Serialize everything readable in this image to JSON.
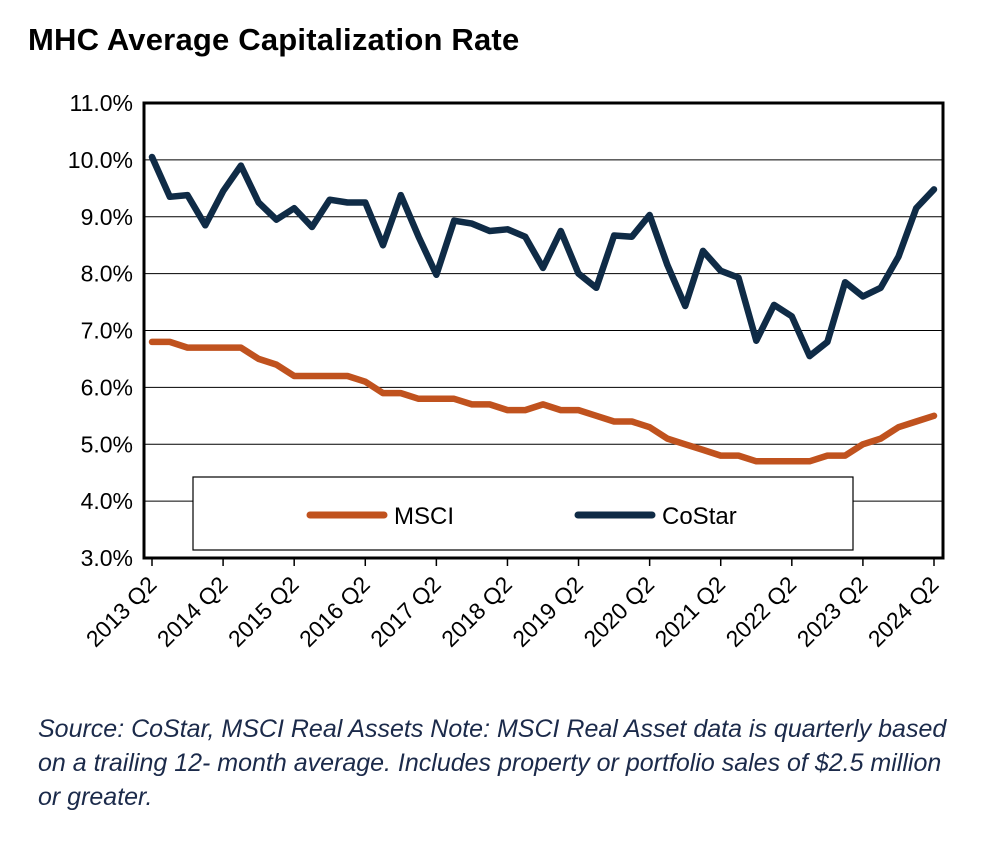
{
  "title": "MHC Average Capitalization Rate",
  "note": "Source: CoStar, MSCI Real Assets  Note: MSCI Real Asset data is quarterly based on a trailing 12- month average. Includes property or portfolio sales of $2.5 million or greater.",
  "chart_data": {
    "type": "line",
    "title": "MHC Average Capitalization Rate",
    "xlabel": "",
    "ylabel": "",
    "ylim": [
      3.0,
      11.0
    ],
    "yticks": [
      "3.0%",
      "4.0%",
      "5.0%",
      "6.0%",
      "7.0%",
      "8.0%",
      "9.0%",
      "10.0%",
      "11.0%"
    ],
    "xtick_labels": [
      "2013 Q2",
      "2014 Q2",
      "2015 Q2",
      "2016 Q2",
      "2017 Q2",
      "2018 Q2",
      "2019 Q2",
      "2020 Q2",
      "2021 Q2",
      "2022 Q2",
      "2023 Q2",
      "2024 Q2"
    ],
    "grid": true,
    "legend_position": "bottom-center",
    "x": [
      "2013 Q2",
      "2013 Q3",
      "2013 Q4",
      "2014 Q1",
      "2014 Q2",
      "2014 Q3",
      "2014 Q4",
      "2015 Q1",
      "2015 Q2",
      "2015 Q3",
      "2015 Q4",
      "2016 Q1",
      "2016 Q2",
      "2016 Q3",
      "2016 Q4",
      "2017 Q1",
      "2017 Q2",
      "2017 Q3",
      "2017 Q4",
      "2018 Q1",
      "2018 Q2",
      "2018 Q3",
      "2018 Q4",
      "2019 Q1",
      "2019 Q2",
      "2019 Q3",
      "2019 Q4",
      "2020 Q1",
      "2020 Q2",
      "2020 Q3",
      "2020 Q4",
      "2021 Q1",
      "2021 Q2",
      "2021 Q3",
      "2021 Q4",
      "2022 Q1",
      "2022 Q2",
      "2022 Q3",
      "2022 Q4",
      "2023 Q1",
      "2023 Q2",
      "2023 Q3",
      "2023 Q4",
      "2024 Q1",
      "2024 Q2"
    ],
    "series": [
      {
        "name": "MSCI",
        "color": "#c0521e",
        "values": [
          6.8,
          6.8,
          6.7,
          6.7,
          6.7,
          6.7,
          6.5,
          6.4,
          6.2,
          6.2,
          6.2,
          6.2,
          6.1,
          5.9,
          5.9,
          5.8,
          5.8,
          5.8,
          5.7,
          5.7,
          5.6,
          5.6,
          5.7,
          5.6,
          5.6,
          5.5,
          5.4,
          5.4,
          5.3,
          5.1,
          5.0,
          4.9,
          4.8,
          4.8,
          4.7,
          4.7,
          4.7,
          4.7,
          4.8,
          4.8,
          5.0,
          5.1,
          5.3,
          5.4,
          5.5
        ]
      },
      {
        "name": "CoStar",
        "color": "#0f2b46",
        "values": [
          10.05,
          9.35,
          9.38,
          8.85,
          9.45,
          9.9,
          9.25,
          8.95,
          9.15,
          8.82,
          9.3,
          9.25,
          9.25,
          8.5,
          9.38,
          8.65,
          7.98,
          8.93,
          8.88,
          8.75,
          8.78,
          8.65,
          8.1,
          8.75,
          8.0,
          7.75,
          8.67,
          8.65,
          9.03,
          8.15,
          7.43,
          8.4,
          8.05,
          7.93,
          6.82,
          7.45,
          7.25,
          6.55,
          6.8,
          7.85,
          7.6,
          7.75,
          8.3,
          9.15,
          9.48
        ]
      }
    ]
  }
}
